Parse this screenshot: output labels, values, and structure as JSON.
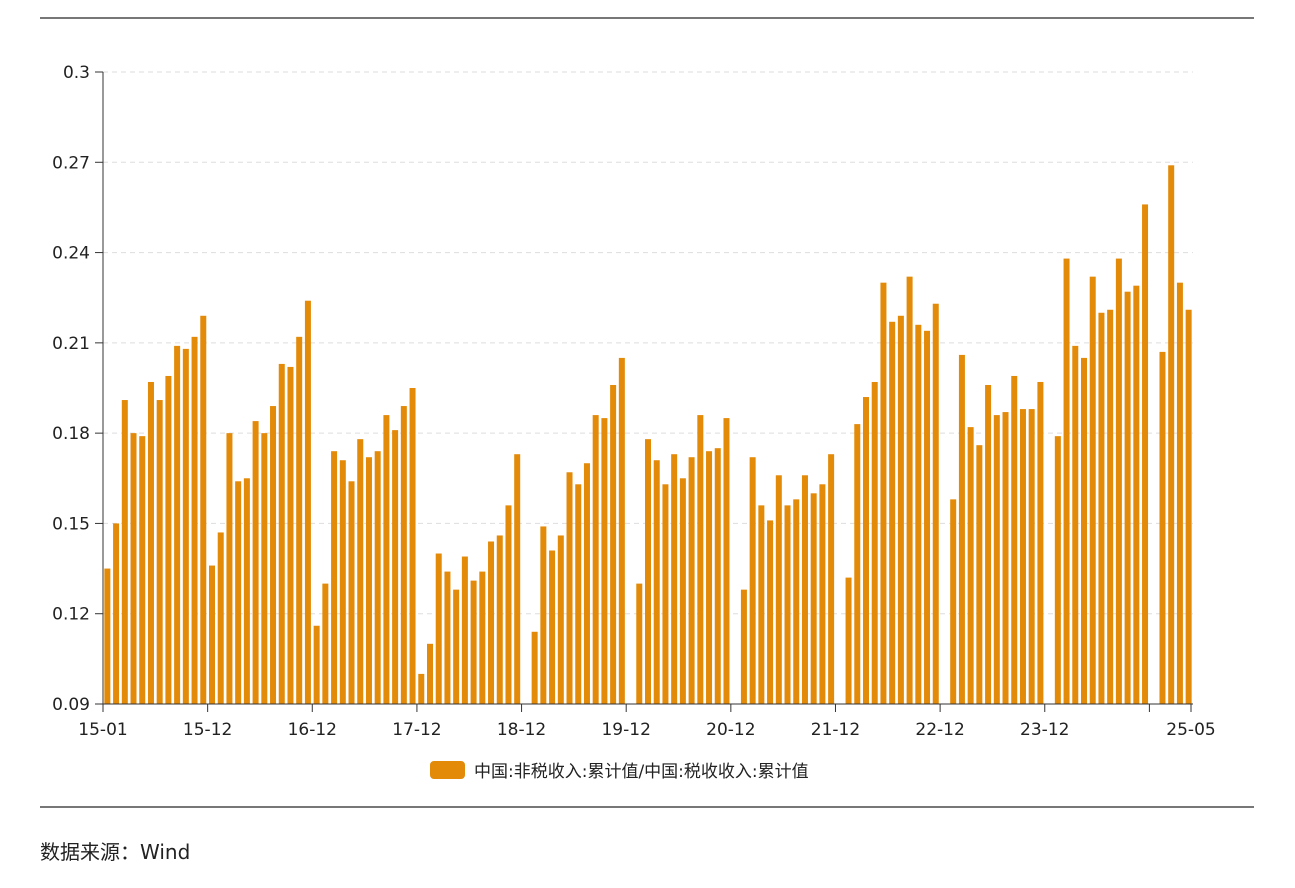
{
  "source": {
    "text": "数据来源：Wind"
  },
  "colors": {
    "bar": "#E38A08",
    "axis": "#333333",
    "grid": "#DDDDDD",
    "frame": "#777777",
    "text": "#222222"
  },
  "chart_data": {
    "type": "bar",
    "legend": "top-center-below-axis",
    "grid": true,
    "series": [
      {
        "name": "中国:非税收入:累计值/中国:税收收入:累计值",
        "color": "#E38A08"
      }
    ],
    "ylim": [
      0.09,
      0.3
    ],
    "yticks": [
      "0.09",
      "0.12",
      "0.15",
      "0.18",
      "0.21",
      "0.24",
      "0.27",
      "0.3"
    ],
    "x_tick_labels": [
      "15-01",
      "15-12",
      "16-12",
      "17-12",
      "18-12",
      "19-12",
      "20-12",
      "21-12",
      "22-12",
      "23-12",
      "25-05"
    ],
    "years": [
      {
        "label": "2015",
        "start_month": 1,
        "values": [
          0.135,
          0.15,
          0.191,
          0.18,
          0.179,
          0.197,
          0.191,
          0.199,
          0.209,
          0.208,
          0.212,
          0.219
        ]
      },
      {
        "label": "2016",
        "start_month": 1,
        "values": [
          0.136,
          0.147,
          0.18,
          0.164,
          0.165,
          0.184,
          0.18,
          0.189,
          0.203,
          0.202,
          0.212,
          0.224
        ]
      },
      {
        "label": "2017",
        "start_month": 1,
        "values": [
          0.116,
          0.13,
          0.174,
          0.171,
          0.164,
          0.178,
          0.172,
          0.174,
          0.186,
          0.181,
          0.189,
          0.195
        ]
      },
      {
        "label": "2018",
        "start_month": 1,
        "values": [
          0.1,
          0.11,
          0.14,
          0.134,
          0.128,
          0.139,
          0.131,
          0.134,
          0.144,
          0.146,
          0.156,
          0.173
        ]
      },
      {
        "label": "2019",
        "start_month": 2,
        "values": [
          0.114,
          0.149,
          0.141,
          0.146,
          0.167,
          0.163,
          0.17,
          0.186,
          0.185,
          0.196,
          0.205
        ]
      },
      {
        "label": "2020",
        "start_month": 2,
        "values": [
          0.13,
          0.178,
          0.171,
          0.163,
          0.173,
          0.165,
          0.172,
          0.186,
          0.174,
          0.175,
          0.185
        ]
      },
      {
        "label": "2021",
        "start_month": 2,
        "values": [
          0.128,
          0.172,
          0.156,
          0.151,
          0.166,
          0.156,
          0.158,
          0.166,
          0.16,
          0.163,
          0.173
        ]
      },
      {
        "label": "2022",
        "start_month": 2,
        "values": [
          0.132,
          0.183,
          0.192,
          0.197,
          0.23,
          0.217,
          0.219,
          0.232,
          0.216,
          0.214,
          0.223
        ]
      },
      {
        "label": "2023",
        "start_month": 2,
        "values": [
          0.158,
          0.206,
          0.182,
          0.176,
          0.196,
          0.186,
          0.187,
          0.199,
          0.188,
          0.188,
          0.197
        ]
      },
      {
        "label": "2024",
        "start_month": 2,
        "values": [
          0.179,
          0.238,
          0.209,
          0.205,
          0.232,
          0.22,
          0.221,
          0.238,
          0.227,
          0.229,
          0.256
        ]
      },
      {
        "label": "2025",
        "start_month": 2,
        "values": [
          0.207,
          0.269,
          0.23,
          0.221
        ]
      }
    ]
  }
}
